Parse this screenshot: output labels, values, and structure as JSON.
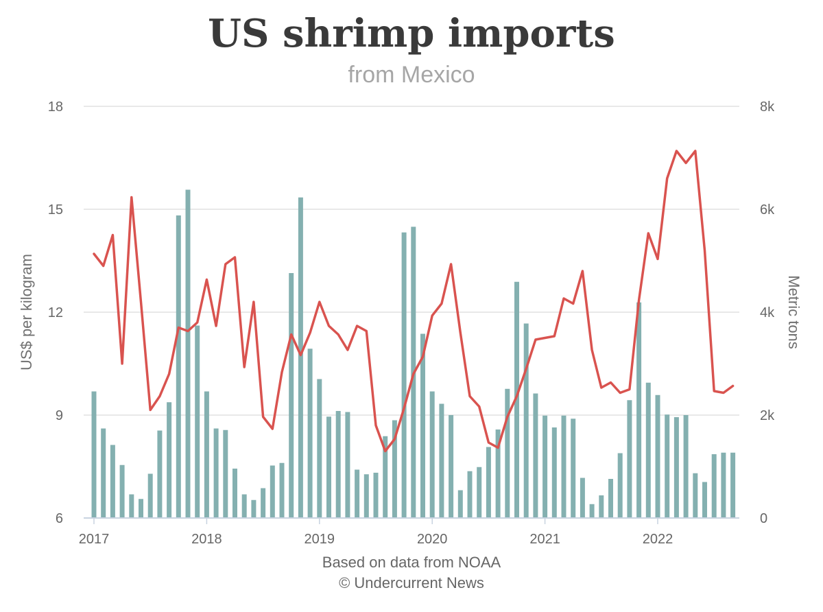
{
  "chart_data": {
    "type": "bar+line",
    "title": "US shrimp imports",
    "subtitle": "from Mexico",
    "source_lines": [
      "Based on data from NOAA",
      "© Undercurrent News"
    ],
    "x_start": "2017-01",
    "x_tick_labels": [
      "2017",
      "2018",
      "2019",
      "2020",
      "2021",
      "2022"
    ],
    "y_left": {
      "label": "US$ per kilogram",
      "min": 6,
      "max": 18,
      "ticks": [
        6,
        9,
        12,
        15,
        18
      ]
    },
    "y_right": {
      "label": "Metric tons",
      "min": 0,
      "max": 8000,
      "ticks": [
        0,
        2000,
        4000,
        6000,
        8000
      ],
      "tick_labels": [
        "0",
        "2k",
        "4k",
        "6k",
        "8k"
      ]
    },
    "grid": true,
    "colors": {
      "bars": "#84b0b0",
      "line": "#d9534f",
      "grid": "#e0e0e0",
      "axis": "#c8d3e0"
    },
    "series": [
      {
        "type": "bar",
        "axis": "right",
        "values": [
          2460,
          1740,
          1420,
          1030,
          460,
          370,
          860,
          1700,
          2250,
          5880,
          6380,
          3740,
          2460,
          1740,
          1710,
          960,
          460,
          350,
          580,
          1020,
          1070,
          4760,
          6230,
          3290,
          2700,
          1970,
          2080,
          2060,
          940,
          850,
          880,
          1590,
          1900,
          5550,
          5660,
          3580,
          2460,
          2220,
          2000,
          540,
          910,
          990,
          1380,
          1720,
          2510,
          4590,
          3780,
          2420,
          1990,
          1760,
          1990,
          1930,
          780,
          270,
          440,
          760,
          1260,
          2290,
          4190,
          2630,
          2390,
          2010,
          1960,
          2000,
          870,
          700,
          1240,
          1270,
          1270
        ]
      },
      {
        "type": "line",
        "axis": "left",
        "values": [
          13.7,
          13.35,
          14.25,
          10.5,
          15.35,
          12.3,
          9.15,
          9.55,
          10.2,
          11.55,
          11.45,
          11.7,
          12.95,
          11.6,
          13.4,
          13.6,
          10.4,
          12.3,
          8.95,
          8.6,
          10.25,
          11.35,
          10.75,
          11.4,
          12.3,
          11.6,
          11.35,
          10.9,
          11.6,
          11.45,
          8.7,
          7.95,
          8.3,
          9.2,
          10.2,
          10.7,
          11.9,
          12.25,
          13.4,
          11.4,
          9.55,
          9.25,
          8.2,
          8.05,
          8.95,
          9.55,
          10.35,
          11.2,
          11.25,
          11.3,
          12.4,
          12.25,
          13.2,
          10.9,
          9.8,
          9.95,
          9.65,
          9.75,
          12.35,
          14.3,
          13.55,
          15.9,
          16.7,
          16.35,
          16.7,
          13.8,
          9.7,
          9.65,
          9.85
        ]
      }
    ]
  }
}
